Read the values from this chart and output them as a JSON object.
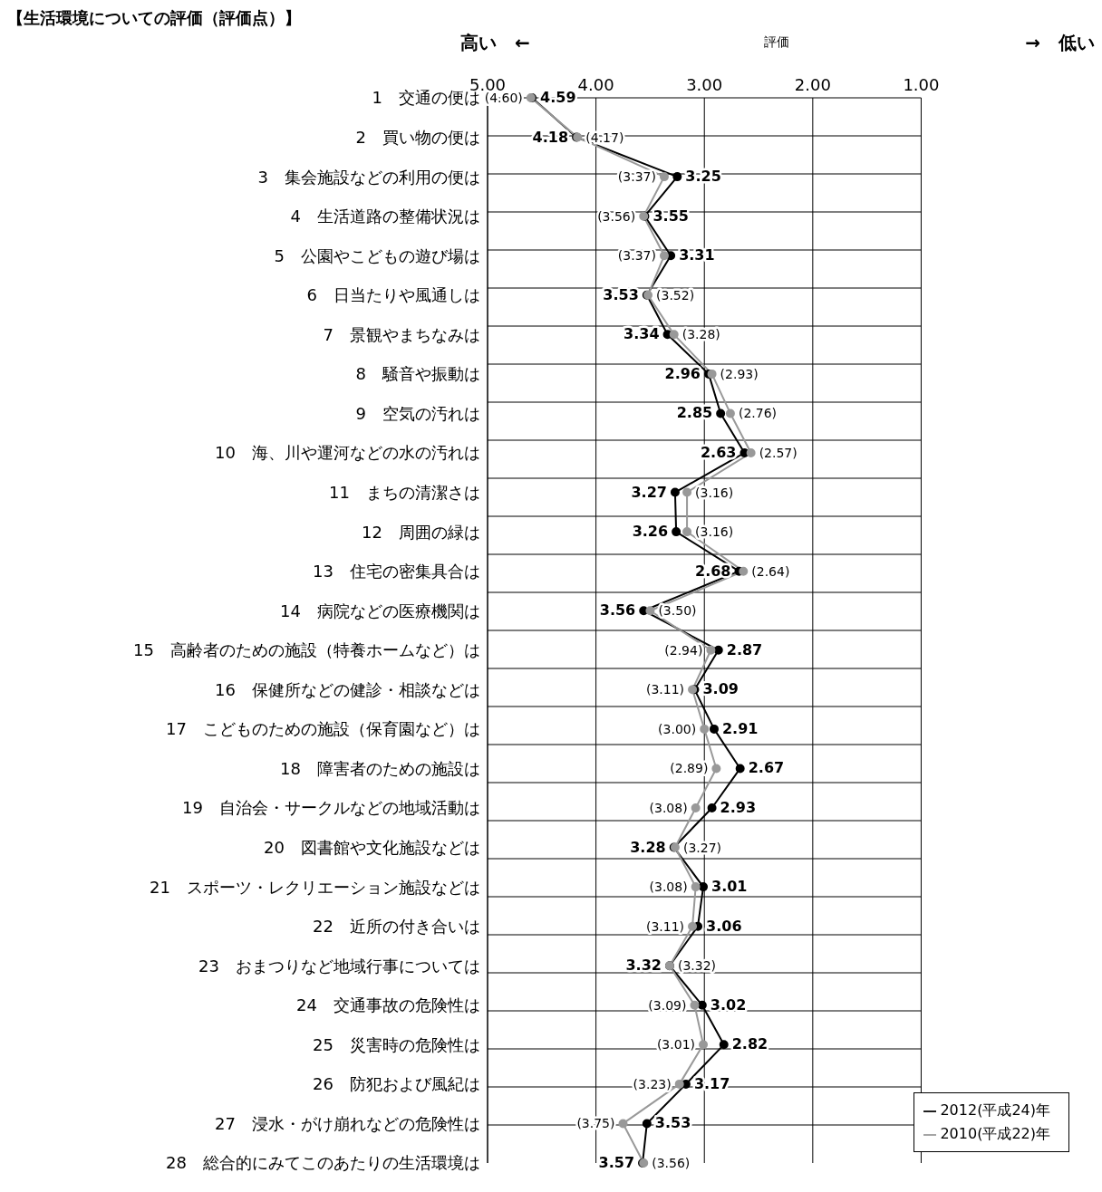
{
  "chart_data": {
    "type": "line",
    "title": "【生活環境についての評価（評価点）】",
    "xlabel": "評価",
    "annotations": [
      "高い　←",
      "→　低い"
    ],
    "categories": [
      "1　交通の便は",
      "2　買い物の便は",
      "3　集会施設などの利用の便は",
      "4　生活道路の整備状況は",
      "5　公園やこどもの遊び場は",
      "6　日当たりや風通しは",
      "7　景観やまちなみは",
      "8　騒音や振動は",
      "9　空気の汚れは",
      "10　海、川や運河などの水の汚れは",
      "11　まちの清潔さは",
      "12　周囲の緑は",
      "13　住宅の密集具合は",
      "14　病院などの医療機関は",
      "15　高齢者のための施設（特養ホームなど）は",
      "16　保健所などの健診・相談などは",
      "17　こどものための施設（保育園など）は",
      "18　障害者のための施設は",
      "19　自治会・サークルなどの地域活動は",
      "20　図書館や文化施設などは",
      "21　スポーツ・レクリエーション施設などは",
      "22　近所の付き合いは",
      "23　おまつりなど地域行事については",
      "24　交通事故の危険性は",
      "25　災害時の危険性は",
      "26　防犯および風紀は",
      "27　浸水・がけ崩れなどの危険性は",
      "28　総合的にみてこのあたりの生活環境は"
    ],
    "orientation": "horizontal",
    "xlim": [
      5,
      1
    ],
    "xticks": [
      {
        "value": 5,
        "label": "5.00"
      },
      {
        "value": 4,
        "label": "4.00"
      },
      {
        "value": 3,
        "label": "3.00"
      },
      {
        "value": 2,
        "label": "2.00"
      },
      {
        "value": 1,
        "label": "1.00"
      }
    ],
    "series": [
      {
        "name": "2012(平成24)年",
        "color": "#000000",
        "values": [
          4.59,
          4.18,
          3.25,
          3.55,
          3.31,
          3.53,
          3.34,
          2.96,
          2.85,
          2.63,
          3.27,
          3.26,
          2.68,
          3.56,
          2.87,
          3.09,
          2.91,
          2.67,
          2.93,
          3.28,
          3.01,
          3.06,
          3.32,
          3.02,
          2.82,
          3.17,
          3.53,
          3.57
        ],
        "value_labels": [
          "4.59",
          "4.18",
          "3.25",
          "3.55",
          "3.31",
          "3.53",
          "3.34",
          "2.96",
          "2.85",
          "2.63",
          "3.27",
          "3.26",
          "2.68",
          "3.56",
          "2.87",
          "3.09",
          "2.91",
          "2.67",
          "2.93",
          "3.28",
          "3.01",
          "3.06",
          "3.32",
          "3.02",
          "2.82",
          "3.17",
          "3.53",
          "3.57"
        ]
      },
      {
        "name": "2010(平成22)年",
        "color": "#999999",
        "values": [
          4.6,
          4.17,
          3.37,
          3.56,
          3.37,
          3.52,
          3.28,
          2.93,
          2.76,
          2.57,
          3.16,
          3.16,
          2.64,
          3.5,
          2.94,
          3.11,
          3.0,
          2.89,
          3.08,
          3.27,
          3.08,
          3.11,
          3.32,
          3.09,
          3.01,
          3.23,
          3.75,
          3.56
        ],
        "value_labels": [
          "(4.60)",
          "(4.17)",
          "(3.37)",
          "(3.56)",
          "(3.37)",
          "(3.52)",
          "(3.28)",
          "(2.93)",
          "(2.76)",
          "(2.57)",
          "(3.16)",
          "(3.16)",
          "(2.64)",
          "(3.50)",
          "(2.94)",
          "(3.11)",
          "(3.00)",
          "(2.89)",
          "(3.08)",
          "(3.27)",
          "(3.08)",
          "(3.11)",
          "(3.32)",
          "(3.09)",
          "(3.01)",
          "(3.23)",
          "(3.75)",
          "(3.56)"
        ]
      }
    ],
    "grid": true,
    "legend": "bottom right",
    "marker": "circle",
    "line_style": "solid"
  }
}
